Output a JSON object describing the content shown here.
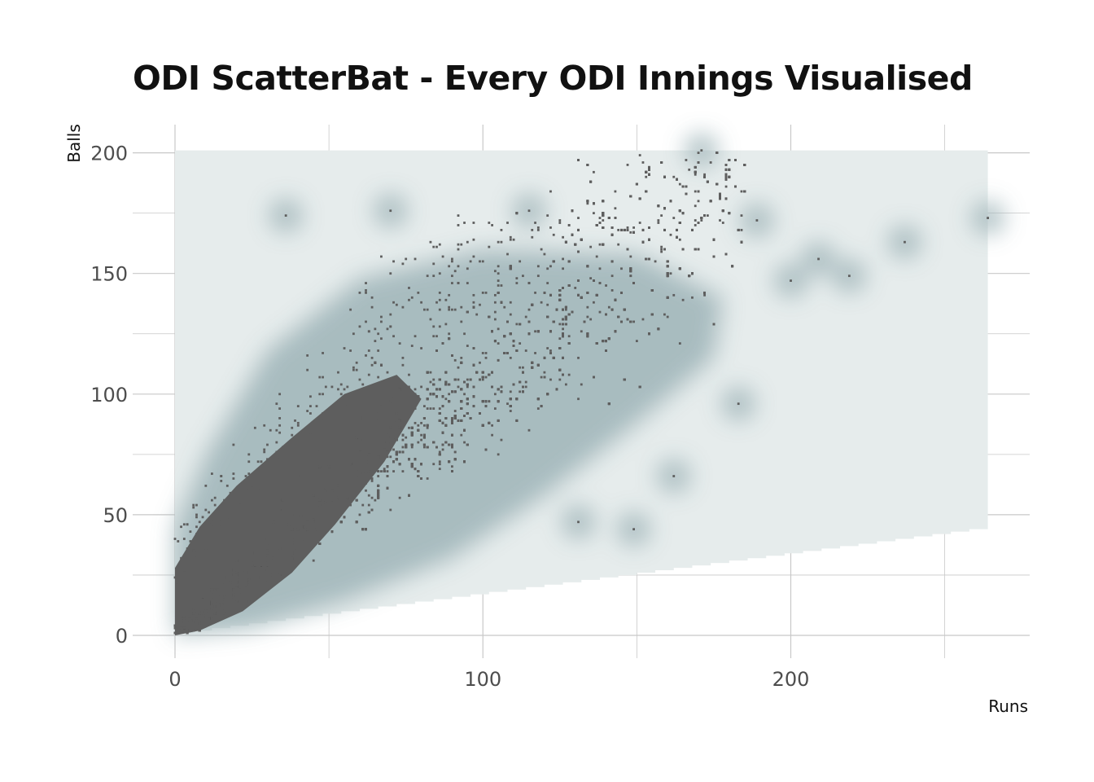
{
  "chart_data": {
    "type": "scatter",
    "title": "ODI ScatterBat - Every ODI Innings Visualised",
    "xlabel": "Runs",
    "ylabel": "Balls",
    "xlim": [
      0,
      264
    ],
    "ylim": [
      0,
      201
    ],
    "x_ticks": [
      "0",
      "100",
      "200"
    ],
    "x_tick_values": [
      0,
      100,
      200
    ],
    "y_ticks": [
      "0",
      "50",
      "100",
      "150",
      "200"
    ],
    "y_tick_values": [
      0,
      50,
      100,
      150,
      200
    ],
    "grid": true,
    "density_background": true,
    "colors": {
      "points": "#5e5e5e",
      "density_fill": "#e6ecec",
      "density_glow": "#9eb4b8",
      "grid": "#c8c8c8",
      "text": "#4d4d4d"
    },
    "notable_points": [
      {
        "runs": 264,
        "balls": 173
      },
      {
        "runs": 237,
        "balls": 163
      },
      {
        "runs": 219,
        "balls": 149
      },
      {
        "runs": 209,
        "balls": 156
      },
      {
        "runs": 200,
        "balls": 147
      },
      {
        "runs": 189,
        "balls": 172
      },
      {
        "runs": 183,
        "balls": 96
      },
      {
        "runs": 171,
        "balls": 201
      },
      {
        "runs": 162,
        "balls": 66
      },
      {
        "runs": 149,
        "balls": 44
      },
      {
        "runs": 131,
        "balls": 47
      },
      {
        "runs": 115,
        "balls": 176
      },
      {
        "runs": 70,
        "balls": 176
      },
      {
        "runs": 36,
        "balls": 174
      }
    ]
  }
}
